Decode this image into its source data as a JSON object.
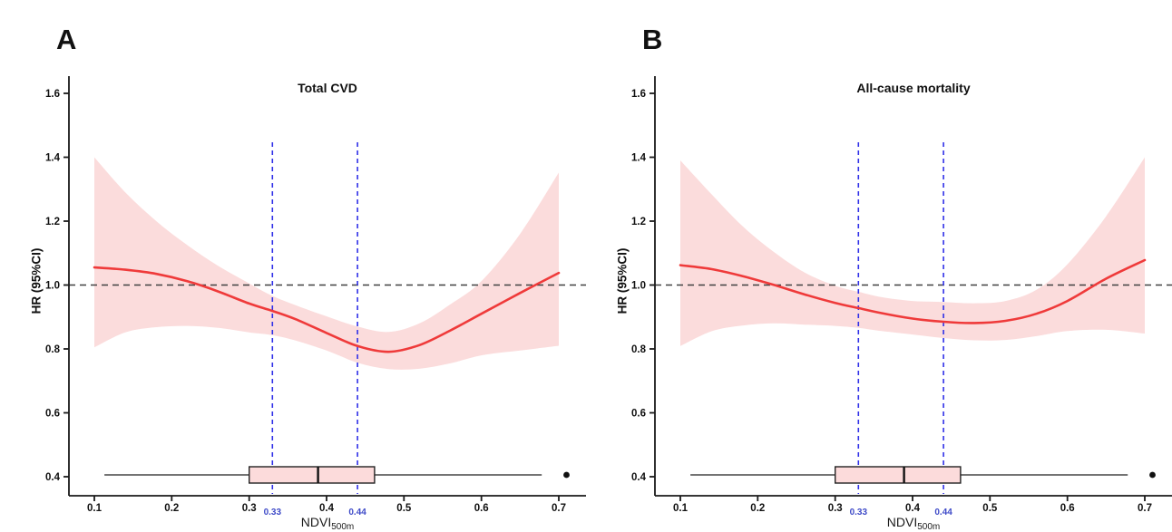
{
  "style": {
    "background": "#FFFFFF",
    "curve_color": "#EF3A3A",
    "band_color": "#FBDCDC",
    "box_fill": "#FCDBDB",
    "vline_color": "#3030E8",
    "vline_label_color": "#3F4BC8",
    "ref_line_color": "#404040",
    "axis_color": "#1A1A1A",
    "text_color": "#111111"
  },
  "chart_data": [
    {
      "type": "line",
      "panel_label": "A",
      "title": "Total CVD",
      "xlabel_main": "NDVI",
      "xlabel_sub": "500m",
      "ylabel": "HR (95%CI)",
      "xlim": [
        0.1,
        0.7
      ],
      "ylim": [
        0.4,
        1.6
      ],
      "x_tick_labels": [
        "0.1",
        "0.2",
        "0.3",
        "0.4",
        "0.5",
        "0.6",
        "0.7"
      ],
      "y_tick_labels": [
        "0.4",
        "0.6",
        "0.8",
        "1.0",
        "1.2",
        "1.4",
        "1.6"
      ],
      "reference_hr": 1.0,
      "vertical_lines": [
        {
          "x": 0.33,
          "label": "0.33"
        },
        {
          "x": 0.44,
          "label": "0.44"
        }
      ],
      "x": [
        0.1,
        0.14,
        0.18,
        0.22,
        0.26,
        0.3,
        0.33,
        0.36,
        0.4,
        0.44,
        0.48,
        0.52,
        0.56,
        0.6,
        0.65,
        0.7
      ],
      "hr": [
        1.055,
        1.048,
        1.035,
        1.012,
        0.98,
        0.942,
        0.919,
        0.893,
        0.85,
        0.809,
        0.791,
        0.812,
        0.858,
        0.91,
        0.975,
        1.038
      ],
      "ci_lower": [
        0.805,
        0.852,
        0.868,
        0.872,
        0.866,
        0.852,
        0.843,
        0.826,
        0.795,
        0.757,
        0.737,
        0.738,
        0.755,
        0.78,
        0.795,
        0.81
      ],
      "ci_upper": [
        1.4,
        1.29,
        1.2,
        1.125,
        1.06,
        1.005,
        0.966,
        0.937,
        0.902,
        0.87,
        0.853,
        0.88,
        0.94,
        1.012,
        1.16,
        1.352
      ],
      "boxplot": {
        "whisker_low": 0.113,
        "q1": 0.3,
        "median": 0.389,
        "q3": 0.462,
        "whisker_high": 0.678,
        "outliers": [
          0.71
        ]
      }
    },
    {
      "type": "line",
      "panel_label": "B",
      "title": "All-cause mortality",
      "xlabel_main": "NDVI",
      "xlabel_sub": "500m",
      "ylabel": "HR (95%CI)",
      "xlim": [
        0.1,
        0.7
      ],
      "ylim": [
        0.4,
        1.6
      ],
      "x_tick_labels": [
        "0.1",
        "0.2",
        "0.3",
        "0.4",
        "0.5",
        "0.6",
        "0.7"
      ],
      "y_tick_labels": [
        "0.4",
        "0.6",
        "0.8",
        "1.0",
        "1.2",
        "1.4",
        "1.6"
      ],
      "reference_hr": 1.0,
      "vertical_lines": [
        {
          "x": 0.33,
          "label": "0.33"
        },
        {
          "x": 0.44,
          "label": "0.44"
        }
      ],
      "x": [
        0.1,
        0.14,
        0.18,
        0.22,
        0.26,
        0.3,
        0.33,
        0.36,
        0.4,
        0.44,
        0.48,
        0.52,
        0.56,
        0.6,
        0.65,
        0.7
      ],
      "hr": [
        1.062,
        1.05,
        1.028,
        1.001,
        0.971,
        0.944,
        0.928,
        0.912,
        0.895,
        0.885,
        0.881,
        0.888,
        0.91,
        0.95,
        1.02,
        1.078
      ],
      "ci_lower": [
        0.809,
        0.855,
        0.873,
        0.88,
        0.876,
        0.872,
        0.866,
        0.856,
        0.845,
        0.834,
        0.827,
        0.828,
        0.84,
        0.856,
        0.86,
        0.848
      ],
      "ci_upper": [
        1.39,
        1.285,
        1.185,
        1.105,
        1.04,
        0.998,
        0.979,
        0.962,
        0.95,
        0.947,
        0.943,
        0.95,
        0.985,
        1.065,
        1.215,
        1.4
      ],
      "boxplot": {
        "whisker_low": 0.113,
        "q1": 0.3,
        "median": 0.389,
        "q3": 0.462,
        "whisker_high": 0.678,
        "outliers": [
          0.71
        ]
      }
    }
  ]
}
